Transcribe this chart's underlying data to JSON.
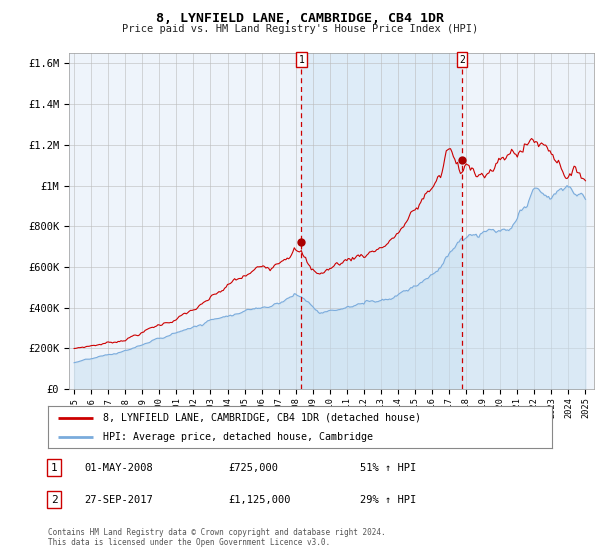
{
  "title": "8, LYNFIELD LANE, CAMBRIDGE, CB4 1DR",
  "subtitle": "Price paid vs. HM Land Registry's House Price Index (HPI)",
  "ylim": [
    0,
    1650000
  ],
  "yticks": [
    0,
    200000,
    400000,
    600000,
    800000,
    1000000,
    1200000,
    1400000,
    1600000
  ],
  "ytick_labels": [
    "£0",
    "£200K",
    "£400K",
    "£600K",
    "£800K",
    "£1M",
    "£1.2M",
    "£1.4M",
    "£1.6M"
  ],
  "sale1_date_num": 2008.33,
  "sale1_price": 725000,
  "sale1_label": "1",
  "sale1_date_str": "01-MAY-2008",
  "sale1_pct": "51% ↑ HPI",
  "sale2_date_num": 2017.75,
  "sale2_price": 1125000,
  "sale2_label": "2",
  "sale2_date_str": "27-SEP-2017",
  "sale2_pct": "29% ↑ HPI",
  "line1_color": "#cc0000",
  "line2_color": "#7aabdc",
  "fill_between_color": "#ddeeff",
  "dashed_color": "#cc0000",
  "background_color": "#eef4fb",
  "legend1": "8, LYNFIELD LANE, CAMBRIDGE, CB4 1DR (detached house)",
  "legend2": "HPI: Average price, detached house, Cambridge",
  "footer": "Contains HM Land Registry data © Crown copyright and database right 2024.\nThis data is licensed under the Open Government Licence v3.0.",
  "xlim_start": 1994.7,
  "xlim_end": 2025.5,
  "xtick_years": [
    1995,
    1996,
    1997,
    1998,
    1999,
    2000,
    2001,
    2002,
    2003,
    2004,
    2005,
    2006,
    2007,
    2008,
    2009,
    2010,
    2011,
    2012,
    2013,
    2014,
    2015,
    2016,
    2017,
    2018,
    2019,
    2020,
    2021,
    2022,
    2023,
    2024,
    2025
  ]
}
